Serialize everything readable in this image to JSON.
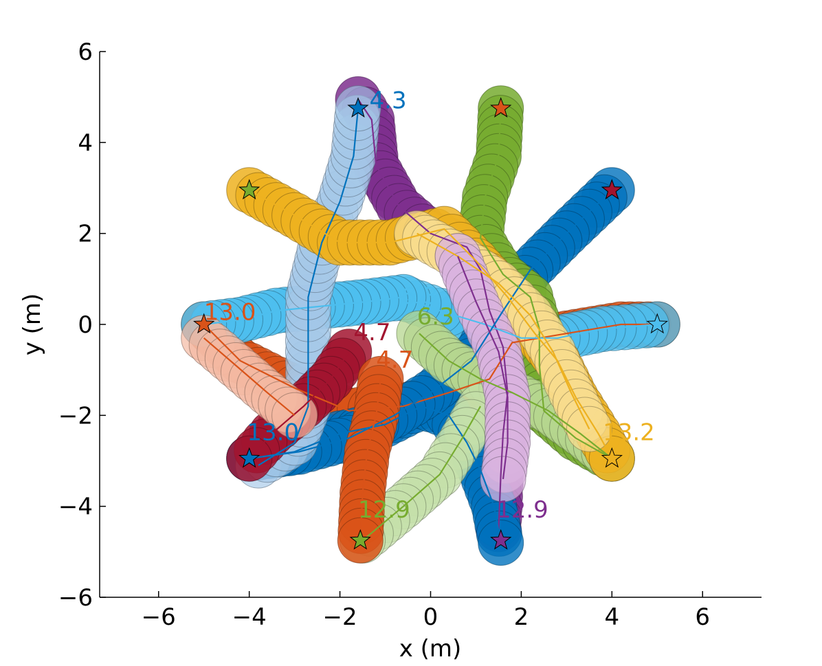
{
  "chart_data": {
    "type": "scatter",
    "title": "",
    "xlabel": "x (m)",
    "ylabel": "y (m)",
    "xlim": [
      -7.3,
      7.3
    ],
    "ylim": [
      -6,
      6
    ],
    "xticks": [
      -6,
      -4,
      -2,
      0,
      2,
      4,
      6
    ],
    "yticks": [
      -6,
      -4,
      -2,
      0,
      2,
      4,
      6
    ],
    "xtick_labels": [
      "−6",
      "−4",
      "−2",
      "0",
      "2",
      "4",
      "6"
    ],
    "ytick_labels": [
      "−6",
      "−4",
      "−2",
      "0",
      "2",
      "4",
      "6"
    ],
    "grid": false,
    "disc_radius_m": 0.5,
    "agents": [
      {
        "color": "#7e2f8e",
        "alpha": 0.85,
        "path": [
          [
            -1.6,
            4.95
          ],
          [
            -1.3,
            4.5
          ],
          [
            -1.2,
            3.5
          ],
          [
            -0.7,
            2.6
          ],
          [
            0.0,
            2.0
          ],
          [
            0.8,
            1.7
          ],
          [
            1.1,
            1.2
          ],
          [
            1.3,
            0.3
          ],
          [
            1.6,
            -0.5
          ],
          [
            1.7,
            -1.5
          ],
          [
            1.6,
            -2.4
          ],
          [
            1.55,
            -3.3
          ],
          [
            1.5,
            -4.5
          ]
        ],
        "goal": [
          1.55,
          -4.78
        ],
        "label": "12.9",
        "label_pos": [
          1.45,
          -4.25
        ],
        "label_color": "#7e2f8e"
      },
      {
        "color": "#d95319",
        "alpha": 0.85,
        "path": [
          [
            -5.0,
            0.0
          ],
          [
            -4.2,
            -0.8
          ],
          [
            -3.0,
            -1.4
          ],
          [
            -1.8,
            -1.9
          ],
          [
            -0.6,
            -1.8
          ],
          [
            0.4,
            -1.5
          ],
          [
            1.3,
            -1.2
          ],
          [
            1.8,
            -0.4
          ],
          [
            3.0,
            -0.2
          ],
          [
            4.2,
            0.0
          ],
          [
            5.0,
            0.0
          ]
        ],
        "goal": [
          4.95,
          0.0
        ],
        "label": "",
        "label_pos": [
          0,
          0
        ],
        "label_color": "#d95319"
      },
      {
        "color": "#4dbeee",
        "alpha": 0.75,
        "path": [
          [
            5.0,
            0.0
          ],
          [
            3.8,
            -0.1
          ],
          [
            2.8,
            -0.3
          ],
          [
            2.0,
            -0.3
          ],
          [
            1.2,
            0.0
          ],
          [
            0.2,
            0.3
          ],
          [
            -0.5,
            0.55
          ]
        ],
        "goal": null,
        "label": "",
        "label_pos": [
          0,
          0
        ],
        "label_color": "#4dbeee"
      },
      {
        "color": "#4dbeee",
        "alpha": 0.85,
        "path": [
          [
            -0.6,
            0.6
          ],
          [
            -1.4,
            0.5
          ],
          [
            -2.4,
            0.4
          ],
          [
            -3.4,
            0.3
          ],
          [
            -4.2,
            0.1
          ],
          [
            -5.0,
            0.0
          ]
        ],
        "goal": [
          -5.0,
          0.0
        ],
        "label": "6.3",
        "label_pos": [
          -0.65,
          0.45
        ],
        "label_color": "#4dbeee"
      },
      {
        "color": "#0072bd",
        "alpha": 0.8,
        "path": [
          [
            -4.0,
            -2.95
          ],
          [
            -3.0,
            -2.8
          ],
          [
            -2.0,
            -2.4
          ],
          [
            -1.0,
            -2.2
          ],
          [
            -0.2,
            -1.8
          ],
          [
            0.4,
            -2.0
          ],
          [
            0.8,
            -2.6
          ],
          [
            1.1,
            -3.2
          ],
          [
            1.4,
            -4.0
          ],
          [
            1.55,
            -4.8
          ]
        ],
        "goal": null,
        "label": "",
        "label_pos": [
          0,
          0
        ],
        "label_color": "#0072bd"
      },
      {
        "color": "#0072bd",
        "alpha": 0.8,
        "path": [
          [
            4.0,
            2.95
          ],
          [
            3.0,
            2.0
          ],
          [
            2.2,
            1.2
          ],
          [
            1.6,
            0.3
          ],
          [
            0.9,
            -0.8
          ],
          [
            0.0,
            -1.5
          ],
          [
            -0.8,
            -2.0
          ],
          [
            -1.8,
            -2.5
          ],
          [
            -2.9,
            -2.8
          ],
          [
            -4.0,
            -2.95
          ]
        ],
        "goal": [
          -4.0,
          -2.95
        ],
        "label": "13.0",
        "label_pos": [
          -4.05,
          -2.55
        ],
        "label_color": "#0072bd"
      },
      {
        "color": "#a5c8e8",
        "alpha": 0.65,
        "path": [
          [
            -3.8,
            -3.1
          ],
          [
            -3.0,
            -2.6
          ],
          [
            -2.7,
            -1.8
          ],
          [
            -2.7,
            -0.6
          ],
          [
            -2.7,
            0.6
          ],
          [
            -2.4,
            1.8
          ],
          [
            -2.0,
            2.7
          ],
          [
            -1.7,
            3.7
          ],
          [
            -1.6,
            4.75
          ]
        ],
        "goal": [
          -1.6,
          4.75
        ],
        "label": "4.3",
        "label_pos": [
          -1.35,
          4.75
        ],
        "label_color": "#0072bd"
      },
      {
        "color": "#77ac30",
        "alpha": 0.85,
        "path": [
          [
            1.55,
            4.75
          ],
          [
            1.5,
            3.7
          ],
          [
            1.2,
            2.8
          ],
          [
            1.1,
            1.9
          ],
          [
            1.6,
            1.1
          ],
          [
            2.2,
            0.6
          ],
          [
            2.4,
            -0.1
          ],
          [
            2.4,
            -0.9
          ],
          [
            2.5,
            -1.9
          ],
          [
            3.2,
            -2.5
          ],
          [
            4.0,
            -2.95
          ]
        ],
        "goal": [
          1.55,
          4.75
        ],
        "label": "",
        "label_pos": [
          0,
          0
        ],
        "label_color": "#77ac30"
      },
      {
        "color": "#b5d68f",
        "alpha": 0.75,
        "path": [
          [
            -0.25,
            -0.2
          ],
          [
            0.4,
            -0.8
          ],
          [
            1.1,
            -1.2
          ],
          [
            1.8,
            -1.5
          ],
          [
            2.6,
            -1.9
          ],
          [
            3.3,
            -2.4
          ],
          [
            4.0,
            -2.95
          ]
        ],
        "goal": null,
        "label": "6.3",
        "label_pos": [
          -0.3,
          0.0
        ],
        "label_color": "#77ac30"
      },
      {
        "color": "#c5dfa9",
        "alpha": 0.7,
        "path": [
          [
            1.1,
            -1.8
          ],
          [
            0.7,
            -2.5
          ],
          [
            0.2,
            -3.3
          ],
          [
            -0.6,
            -4.0
          ],
          [
            -1.5,
            -4.75
          ]
        ],
        "goal": [
          -1.55,
          -4.75
        ],
        "label": "12.9",
        "label_pos": [
          -1.6,
          -4.25
        ],
        "label_color": "#77ac30"
      },
      {
        "color": "#edb120",
        "alpha": 0.85,
        "path": [
          [
            -4.0,
            2.95
          ],
          [
            -3.0,
            2.4
          ],
          [
            -2.0,
            1.8
          ],
          [
            -0.9,
            1.8
          ],
          [
            0.3,
            2.1
          ],
          [
            1.0,
            1.4
          ],
          [
            1.7,
            0.6
          ],
          [
            2.3,
            -0.2
          ],
          [
            2.8,
            -0.8
          ],
          [
            3.2,
            -1.6
          ],
          [
            3.7,
            -2.4
          ],
          [
            4.0,
            -2.95
          ]
        ],
        "goal": [
          4.0,
          -2.95
        ],
        "label": "13.2",
        "label_pos": [
          3.8,
          -2.55
        ],
        "label_color": "#edb120"
      },
      {
        "color": "#f8dc8e",
        "alpha": 0.75,
        "path": [
          [
            -0.3,
            2.0
          ],
          [
            0.6,
            1.5
          ],
          [
            1.5,
            0.9
          ],
          [
            2.2,
            0.2
          ],
          [
            2.7,
            -0.6
          ],
          [
            3.1,
            -1.5
          ],
          [
            3.5,
            -2.3
          ]
        ],
        "goal": null,
        "label": "",
        "label_pos": [
          0,
          0
        ],
        "label_color": "#edb120"
      },
      {
        "color": "#d9b3df",
        "alpha": 0.75,
        "path": [
          [
            0.6,
            1.5
          ],
          [
            1.0,
            0.5
          ],
          [
            1.5,
            -0.6
          ],
          [
            1.7,
            -1.6
          ],
          [
            1.7,
            -2.6
          ],
          [
            1.6,
            -3.4
          ]
        ],
        "goal": null,
        "label": "",
        "label_pos": [
          0,
          0
        ],
        "label_color": "#7e2f8e"
      },
      {
        "color": "#a2142f",
        "alpha": 0.85,
        "path": [
          [
            -1.8,
            -0.6
          ],
          [
            -2.2,
            -1.2
          ],
          [
            -2.8,
            -1.8
          ],
          [
            -3.5,
            -2.4
          ],
          [
            -4.0,
            -2.95
          ]
        ],
        "goal": [
          4.0,
          2.95
        ],
        "label": "4.7",
        "label_pos": [
          -1.7,
          -0.35
        ],
        "label_color": "#a2142f"
      },
      {
        "color": "#d95319",
        "alpha": 0.85,
        "path": [
          [
            -1.1,
            -1.2
          ],
          [
            -1.2,
            -2.0
          ],
          [
            -1.4,
            -2.8
          ],
          [
            -1.5,
            -3.7
          ],
          [
            -1.55,
            -4.75
          ]
        ],
        "goal": [
          1.55,
          4.75
        ],
        "label": "4.7",
        "label_pos": [
          -1.2,
          -0.95
        ],
        "label_color": "#d95319"
      },
      {
        "color": "#f4b9a2",
        "alpha": 0.7,
        "path": [
          [
            -5.0,
            -0.3
          ],
          [
            -4.3,
            -0.9
          ],
          [
            -3.6,
            -1.5
          ],
          [
            -3.0,
            -2.0
          ]
        ],
        "goal": null,
        "label": "13.0",
        "label_pos": [
          -5.0,
          0.1
        ],
        "label_color": "#d95319"
      }
    ],
    "star_markers": [
      {
        "pos": [
          -1.6,
          4.75
        ],
        "color": "#0072bd"
      },
      {
        "pos": [
          1.55,
          4.75
        ],
        "color": "#d95319"
      },
      {
        "pos": [
          -4.0,
          2.95
        ],
        "color": "#77ac30"
      },
      {
        "pos": [
          4.0,
          2.95
        ],
        "color": "#a2142f"
      },
      {
        "pos": [
          -5.0,
          0.0
        ],
        "color": "#d95319"
      },
      {
        "pos": [
          5.0,
          0.0
        ],
        "color": "#4dbeee"
      },
      {
        "pos": [
          -4.0,
          -2.95
        ],
        "color": "#0072bd"
      },
      {
        "pos": [
          4.0,
          -2.95
        ],
        "color": "#edb120"
      },
      {
        "pos": [
          -1.55,
          -4.75
        ],
        "color": "#77ac30"
      },
      {
        "pos": [
          1.55,
          -4.75
        ],
        "color": "#7e2f8e"
      }
    ]
  }
}
